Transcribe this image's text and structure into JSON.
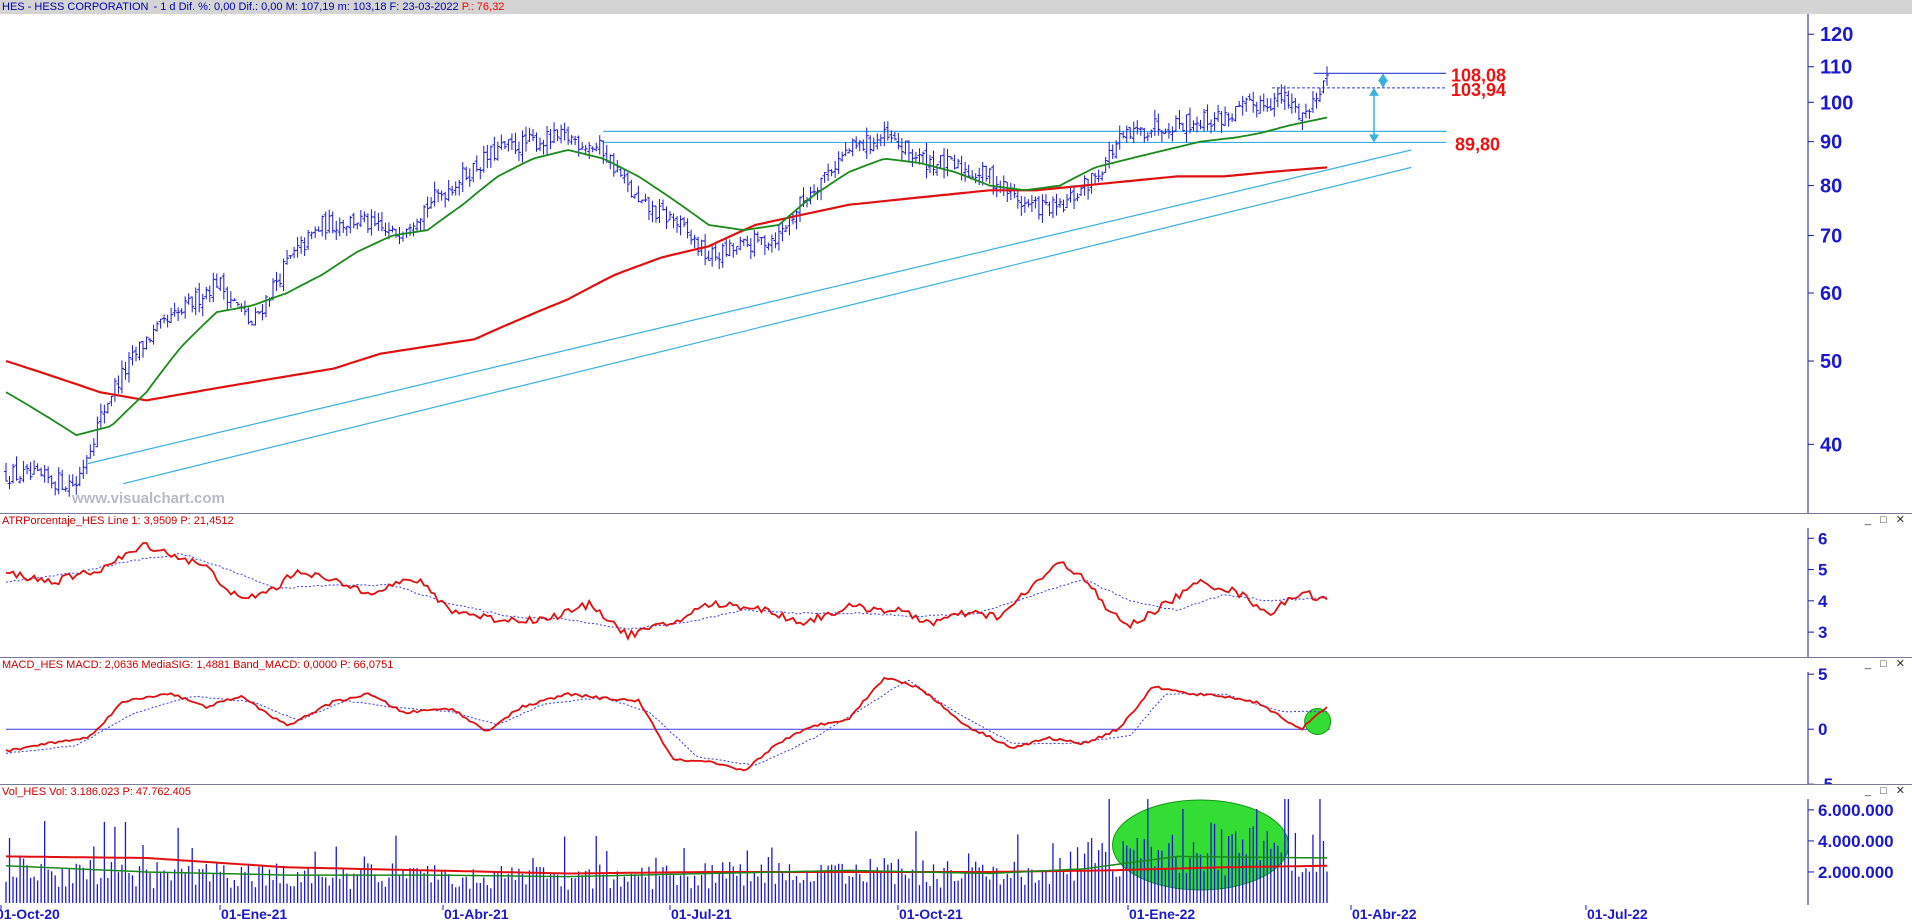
{
  "header": {
    "symbol": "HES - HESS CORPORATION",
    "info": " - 1 d  Dif. %: 0,00  Dif.: 0,00  M: 107,19  m: 103,18  F: 23-03-2022",
    "p_label": "  P.: 76,32"
  },
  "watermark": "www.visualchart.com",
  "window_controls": "_ □ ✕",
  "panels": {
    "atr": {
      "title": "ATRPorcentaje_HES  Line 1: 3,9509  P: 21,4512"
    },
    "macd": {
      "title": "MACD_HES  MACD: 2,0636  MediaSIG: 1,4881  Band_MACD: 0,0000  P: 66,0751"
    },
    "vol": {
      "title": "Vol_HES  Vol: 3.186.023  P: 47.762.405"
    }
  },
  "colors": {
    "price": "#1a1acc",
    "ma_fast": "#1a8a1a",
    "ma_slow": "#e01010",
    "channel": "#3ab0e0",
    "indicator": "#e01010",
    "signal": "#3a3ae0",
    "highlight": "#33dd33"
  },
  "chart_data": [
    {
      "type": "line",
      "name": "price",
      "x_ticks": [
        "01-Oct-20",
        "01-Ene-21",
        "01-Abr-21",
        "01-Jul-21",
        "01-Oct-21",
        "01-Ene-22",
        "01-Abr-22",
        "01-Jul-22"
      ],
      "yscale": "log",
      "ylim": [
        34,
        124
      ],
      "y_ticks": [
        "120",
        "110",
        "100",
        "90",
        "80",
        "70",
        "60",
        "50",
        "40"
      ],
      "annotations": [
        "108,08",
        "103,94",
        "89,80"
      ],
      "price_anchors": [
        [
          0,
          37
        ],
        [
          30,
          36
        ],
        [
          45,
          46
        ],
        [
          60,
          53
        ],
        [
          75,
          57
        ],
        [
          90,
          62
        ],
        [
          105,
          55
        ],
        [
          120,
          65
        ],
        [
          135,
          72
        ],
        [
          150,
          73
        ],
        [
          165,
          70
        ],
        [
          180,
          76
        ],
        [
          195,
          82
        ],
        [
          210,
          88
        ],
        [
          225,
          90
        ],
        [
          240,
          91
        ],
        [
          255,
          88
        ],
        [
          270,
          76
        ],
        [
          285,
          73
        ],
        [
          300,
          66
        ],
        [
          315,
          68
        ],
        [
          330,
          70
        ],
        [
          345,
          80
        ],
        [
          360,
          88
        ],
        [
          375,
          91
        ],
        [
          390,
          86
        ],
        [
          405,
          84
        ],
        [
          420,
          82
        ],
        [
          435,
          76
        ],
        [
          450,
          75
        ],
        [
          465,
          82
        ],
        [
          475,
          90
        ],
        [
          490,
          94
        ],
        [
          505,
          95
        ],
        [
          520,
          96
        ],
        [
          535,
          100
        ],
        [
          545,
          101
        ],
        [
          553,
          97
        ],
        [
          557,
          98
        ],
        [
          560,
          104
        ],
        [
          564,
          107
        ]
      ],
      "ma50": [
        [
          0,
          46
        ],
        [
          30,
          41
        ],
        [
          45,
          42
        ],
        [
          60,
          46
        ],
        [
          75,
          52
        ],
        [
          90,
          57
        ],
        [
          105,
          58
        ],
        [
          120,
          60
        ],
        [
          135,
          63
        ],
        [
          150,
          67
        ],
        [
          165,
          70
        ],
        [
          180,
          71
        ],
        [
          195,
          76
        ],
        [
          210,
          82
        ],
        [
          225,
          86
        ],
        [
          240,
          88
        ],
        [
          255,
          86
        ],
        [
          270,
          82
        ],
        [
          285,
          77
        ],
        [
          300,
          72
        ],
        [
          315,
          71
        ],
        [
          330,
          72
        ],
        [
          345,
          78
        ],
        [
          360,
          83
        ],
        [
          375,
          86
        ],
        [
          390,
          85
        ],
        [
          405,
          83
        ],
        [
          420,
          80
        ],
        [
          435,
          79
        ],
        [
          450,
          80
        ],
        [
          465,
          84
        ],
        [
          480,
          86
        ],
        [
          495,
          88
        ],
        [
          510,
          90
        ],
        [
          525,
          91
        ],
        [
          535,
          92
        ],
        [
          548,
          94
        ],
        [
          564,
          96
        ]
      ],
      "ma200": [
        [
          0,
          50
        ],
        [
          20,
          48
        ],
        [
          40,
          46
        ],
        [
          60,
          45
        ],
        [
          80,
          46
        ],
        [
          100,
          47
        ],
        [
          120,
          48
        ],
        [
          140,
          49
        ],
        [
          160,
          51
        ],
        [
          180,
          52
        ],
        [
          200,
          53
        ],
        [
          220,
          56
        ],
        [
          240,
          59
        ],
        [
          260,
          63
        ],
        [
          280,
          66
        ],
        [
          300,
          68
        ],
        [
          320,
          72
        ],
        [
          340,
          74
        ],
        [
          360,
          76
        ],
        [
          380,
          77
        ],
        [
          400,
          78
        ],
        [
          420,
          79
        ],
        [
          440,
          79
        ],
        [
          460,
          80
        ],
        [
          480,
          81
        ],
        [
          500,
          82
        ],
        [
          520,
          82
        ],
        [
          540,
          83
        ],
        [
          564,
          84
        ]
      ],
      "channel_upper": [
        [
          35,
          38
        ],
        [
          600,
          88
        ]
      ],
      "channel_lower": [
        [
          50,
          36
        ],
        [
          600,
          84
        ]
      ],
      "resistance": [
        [
          255,
          92.5
        ],
        [
          615,
          92.5
        ]
      ],
      "support": [
        [
          255,
          89.8
        ],
        [
          615,
          89.8
        ]
      ],
      "targets": {
        "t1": 108.08,
        "t2": 103.94,
        "t3": 89.8
      }
    },
    {
      "type": "line",
      "name": "ATRPorcentaje",
      "yticks": [
        "6",
        "5",
        "4",
        "3"
      ],
      "ylim": [
        2.3,
        6.2
      ],
      "series": [
        {
          "values": [
            [
              0,
              4.9
            ],
            [
              20,
              4.6
            ],
            [
              40,
              5.0
            ],
            [
              60,
              5.8
            ],
            [
              70,
              5.5
            ],
            [
              85,
              5.1
            ],
            [
              100,
              4.0
            ],
            [
              115,
              4.4
            ],
            [
              125,
              5.0
            ],
            [
              140,
              4.6
            ],
            [
              155,
              4.3
            ],
            [
              175,
              4.7
            ],
            [
              190,
              3.7
            ],
            [
              210,
              3.4
            ],
            [
              230,
              3.4
            ],
            [
              250,
              3.9
            ],
            [
              265,
              2.9
            ],
            [
              285,
              3.3
            ],
            [
              300,
              3.9
            ],
            [
              320,
              3.8
            ],
            [
              340,
              3.3
            ],
            [
              360,
              3.8
            ],
            [
              380,
              3.7
            ],
            [
              395,
              3.3
            ],
            [
              410,
              3.6
            ],
            [
              425,
              3.5
            ],
            [
              440,
              4.6
            ],
            [
              450,
              5.2
            ],
            [
              460,
              4.8
            ],
            [
              470,
              3.7
            ],
            [
              480,
              3.2
            ],
            [
              495,
              3.9
            ],
            [
              510,
              4.6
            ],
            [
              525,
              4.3
            ],
            [
              540,
              3.6
            ],
            [
              553,
              4.3
            ],
            [
              564,
              4.0
            ]
          ]
        },
        {
          "values": [
            [
              0,
              4.6
            ],
            [
              30,
              4.9
            ],
            [
              55,
              5.3
            ],
            [
              75,
              5.5
            ],
            [
              95,
              5.0
            ],
            [
              115,
              4.4
            ],
            [
              140,
              4.5
            ],
            [
              165,
              4.5
            ],
            [
              190,
              3.9
            ],
            [
              215,
              3.5
            ],
            [
              240,
              3.4
            ],
            [
              265,
              3.1
            ],
            [
              290,
              3.3
            ],
            [
              315,
              3.7
            ],
            [
              340,
              3.6
            ],
            [
              365,
              3.6
            ],
            [
              390,
              3.5
            ],
            [
              415,
              3.6
            ],
            [
              440,
              4.2
            ],
            [
              460,
              4.7
            ],
            [
              480,
              4.0
            ],
            [
              500,
              3.7
            ],
            [
              520,
              4.2
            ],
            [
              540,
              4.0
            ],
            [
              564,
              4.1
            ]
          ]
        }
      ]
    },
    {
      "type": "line",
      "name": "MACD",
      "yticks": [
        "5",
        "0",
        "-5"
      ],
      "ylim": [
        -4.8,
        5.2
      ],
      "series": [
        {
          "values": [
            [
              0,
              -2.0
            ],
            [
              20,
              -1.2
            ],
            [
              35,
              -0.8
            ],
            [
              50,
              2.5
            ],
            [
              70,
              3.3
            ],
            [
              85,
              2.0
            ],
            [
              100,
              3.0
            ],
            [
              120,
              0.3
            ],
            [
              140,
              2.5
            ],
            [
              155,
              3.2
            ],
            [
              170,
              1.5
            ],
            [
              190,
              1.9
            ],
            [
              205,
              -0.2
            ],
            [
              220,
              2.0
            ],
            [
              240,
              3.2
            ],
            [
              255,
              2.8
            ],
            [
              270,
              2.6
            ],
            [
              285,
              -2.8
            ],
            [
              300,
              -3.0
            ],
            [
              315,
              -3.8
            ],
            [
              330,
              -1.2
            ],
            [
              345,
              0.3
            ],
            [
              360,
              1.0
            ],
            [
              375,
              4.7
            ],
            [
              390,
              3.8
            ],
            [
              410,
              0.3
            ],
            [
              430,
              -1.7
            ],
            [
              445,
              -0.8
            ],
            [
              460,
              -1.3
            ],
            [
              475,
              0.0
            ],
            [
              490,
              3.9
            ],
            [
              505,
              3.2
            ],
            [
              520,
              3.0
            ],
            [
              535,
              2.4
            ],
            [
              545,
              1.0
            ],
            [
              553,
              0.0
            ],
            [
              564,
              2.0
            ]
          ]
        },
        {
          "values": [
            [
              0,
              -2.2
            ],
            [
              30,
              -1.5
            ],
            [
              55,
              1.5
            ],
            [
              80,
              3.0
            ],
            [
              105,
              2.5
            ],
            [
              125,
              0.8
            ],
            [
              145,
              2.6
            ],
            [
              165,
              2.0
            ],
            [
              190,
              1.6
            ],
            [
              210,
              0.4
            ],
            [
              230,
              2.3
            ],
            [
              255,
              2.9
            ],
            [
              275,
              1.5
            ],
            [
              295,
              -2.5
            ],
            [
              320,
              -3.3
            ],
            [
              345,
              -0.8
            ],
            [
              365,
              1.8
            ],
            [
              385,
              4.5
            ],
            [
              405,
              1.6
            ],
            [
              430,
              -1.3
            ],
            [
              455,
              -1.3
            ],
            [
              480,
              -0.6
            ],
            [
              495,
              3.2
            ],
            [
              520,
              3.2
            ],
            [
              545,
              1.6
            ],
            [
              564,
              1.6
            ]
          ]
        }
      ]
    },
    {
      "type": "bar",
      "name": "Volume",
      "yticks": [
        "6.000.000",
        "4.000.000",
        "2.000.000"
      ],
      "ylim": [
        0,
        6700000
      ],
      "vol_base": [
        [
          0,
          2100000
        ],
        [
          80,
          1800000
        ],
        [
          160,
          1700000
        ],
        [
          240,
          1700000
        ],
        [
          320,
          1800000
        ],
        [
          400,
          2000000
        ],
        [
          440,
          1700000
        ],
        [
          470,
          3200000
        ],
        [
          520,
          3500000
        ],
        [
          564,
          3000000
        ]
      ],
      "ma_fast": [
        [
          0,
          2400000
        ],
        [
          60,
          2000000
        ],
        [
          120,
          1800000
        ],
        [
          180,
          1800000
        ],
        [
          240,
          1700000
        ],
        [
          300,
          1900000
        ],
        [
          360,
          2100000
        ],
        [
          420,
          1900000
        ],
        [
          460,
          2200000
        ],
        [
          500,
          3000000
        ],
        [
          564,
          2900000
        ]
      ],
      "ma_slow": [
        [
          0,
          3000000
        ],
        [
          60,
          2900000
        ],
        [
          120,
          2300000
        ],
        [
          180,
          2100000
        ],
        [
          240,
          1900000
        ],
        [
          300,
          2000000
        ],
        [
          360,
          2000000
        ],
        [
          420,
          2000000
        ],
        [
          470,
          2100000
        ],
        [
          520,
          2300000
        ],
        [
          564,
          2400000
        ]
      ]
    }
  ]
}
